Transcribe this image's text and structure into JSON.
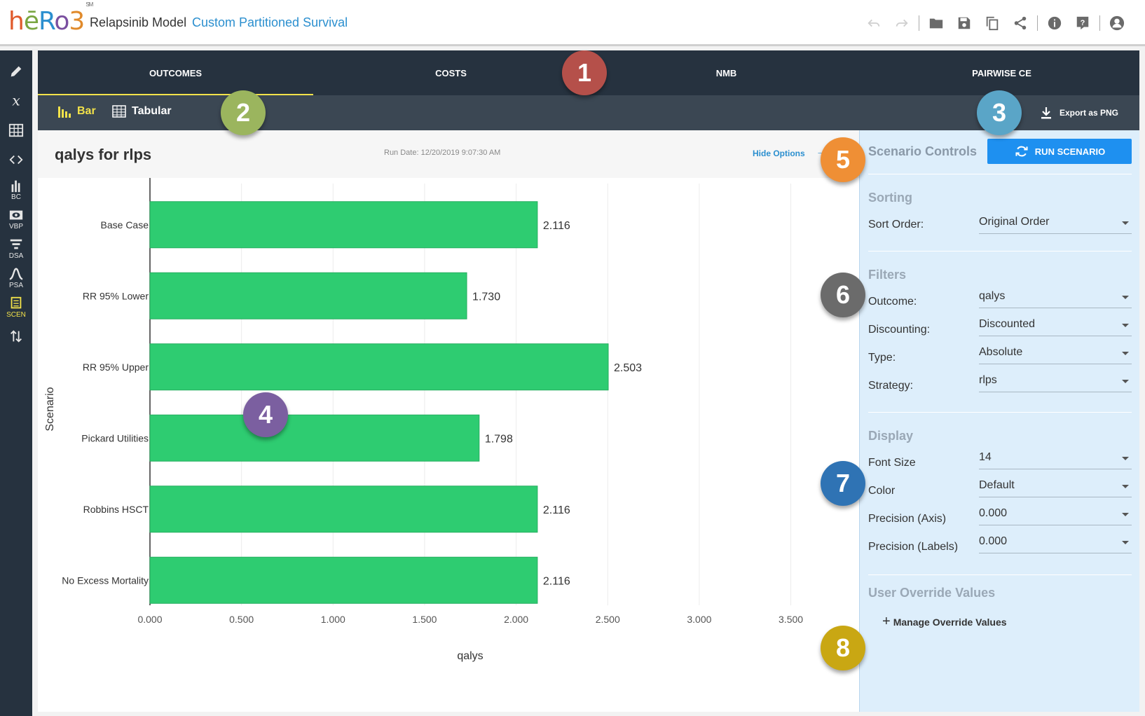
{
  "header": {
    "logo": {
      "h": "h",
      "e": "ē",
      "r": "R",
      "o": "o",
      "three": "3",
      "sup": "SM"
    },
    "model_name": "Relapsinib Model",
    "model_type": "Custom Partitioned Survival",
    "icons": [
      "undo-icon",
      "redo-icon",
      "folder-icon",
      "save-icon",
      "copy-icon",
      "share-icon",
      "info-icon",
      "help-icon",
      "user-icon"
    ]
  },
  "sidebar": {
    "items": [
      {
        "icon": "pencil-icon",
        "label": ""
      },
      {
        "icon": "variable-x-icon",
        "label": ""
      },
      {
        "icon": "table-icon",
        "label": ""
      },
      {
        "icon": "code-icon",
        "label": ""
      },
      {
        "icon": "bar-chart-icon",
        "label": "BC"
      },
      {
        "icon": "eye-icon",
        "label": "VBP"
      },
      {
        "icon": "tornado-icon",
        "label": "DSA"
      },
      {
        "icon": "curve-icon",
        "label": "PSA"
      },
      {
        "icon": "list-icon",
        "label": "SCEN"
      },
      {
        "icon": "up-down-arrows-icon",
        "label": ""
      }
    ]
  },
  "tabs": [
    "OUTCOMES",
    "COSTS",
    "NMB",
    "PAIRWISE CE"
  ],
  "active_tab": "OUTCOMES",
  "view_toggle": {
    "bar": "Bar",
    "tabular": "Tabular"
  },
  "export_label": "Export as PNG",
  "chart_header": {
    "title": "qalys for rlps",
    "run_date": "Run Date: 12/20/2019 9:07:30 AM",
    "hide_options": "Hide Options",
    "hide_arrow": "→"
  },
  "chart_data": {
    "type": "bar",
    "orientation": "horizontal",
    "categories": [
      "Base Case",
      "RR 95% Lower",
      "RR 95% Upper",
      "Pickard Utilities",
      "Robbins HSCT",
      "No Excess Mortality"
    ],
    "values": [
      2.116,
      1.73,
      2.503,
      1.798,
      2.116,
      2.116
    ],
    "value_labels": [
      "2.116",
      "1.730",
      "2.503",
      "1.798",
      "2.116",
      "2.116"
    ],
    "xlabel": "qalys",
    "ylabel": "Scenario",
    "xlim": [
      0,
      3.5
    ],
    "xticks": [
      "0.000",
      "0.500",
      "1.000",
      "1.500",
      "2.000",
      "2.500",
      "3.000",
      "3.500"
    ],
    "grid": true,
    "bar_color": "#2ecc71"
  },
  "panel": {
    "title": "Scenario Controls",
    "run_button": "RUN SCENARIO",
    "sorting": {
      "heading": "Sorting",
      "sort_order_label": "Sort Order:",
      "sort_order_value": "Original Order"
    },
    "filters": {
      "heading": "Filters",
      "outcome_label": "Outcome:",
      "outcome_value": "qalys",
      "discounting_label": "Discounting:",
      "discounting_value": "Discounted",
      "type_label": "Type:",
      "type_value": "Absolute",
      "strategy_label": "Strategy:",
      "strategy_value": "rlps"
    },
    "display": {
      "heading": "Display",
      "font_size_label": "Font Size",
      "font_size_value": "14",
      "color_label": "Color",
      "color_value": "Default",
      "precision_axis_label": "Precision (Axis)",
      "precision_axis_value": "0.000",
      "precision_labels_label": "Precision (Labels)",
      "precision_labels_value": "0.000"
    },
    "override": {
      "heading": "User Override Values",
      "manage": "Manage Override Values"
    }
  },
  "callouts": [
    {
      "n": "1",
      "color": "#b5504a"
    },
    {
      "n": "2",
      "color": "#9bb55e"
    },
    {
      "n": "3",
      "color": "#5aa5c7"
    },
    {
      "n": "4",
      "color": "#7b5fa0"
    },
    {
      "n": "5",
      "color": "#ef8f35"
    },
    {
      "n": "6",
      "color": "#6b6b6b"
    },
    {
      "n": "7",
      "color": "#2f73b4"
    },
    {
      "n": "8",
      "color": "#c9a713"
    }
  ]
}
